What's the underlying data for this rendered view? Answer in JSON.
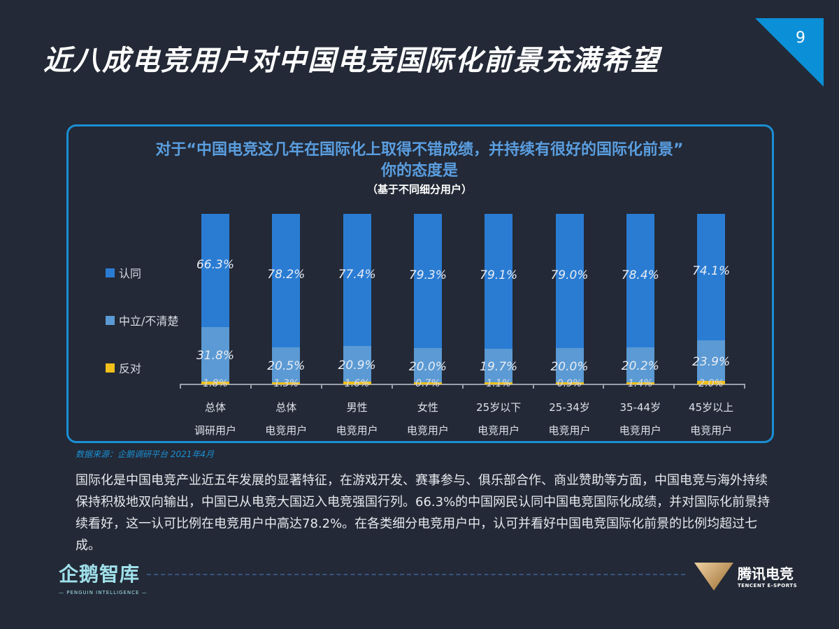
{
  "header": {
    "title": "近八成电竞用户对中国电竞国际化前景充满希望",
    "page_number": "9"
  },
  "chart": {
    "question_line1": "对于“中国电竞这几年在国际化上取得不错成绩，并持续有很好的国际化前景”",
    "question_line2": "你的态度是",
    "subtitle": "（基于不同细分用户）",
    "legend": [
      {
        "label": "认同",
        "color": "#2a7cd3"
      },
      {
        "label": "中立/不清楚",
        "color": "#5b9ad4"
      },
      {
        "label": "反对",
        "color": "#f2c01a"
      }
    ]
  },
  "chart_data": {
    "type": "bar",
    "stacked": true,
    "title": "对于“中国电竞这几年在国际化上取得不错成绩，并持续有很好的国际化前景”你的态度是",
    "subtitle": "（基于不同细分用户）",
    "categories": [
      "总体 调研用户",
      "总体 电竞用户",
      "男性 电竞用户",
      "女性 电竞用户",
      "25岁以下 电竞用户",
      "25-34岁 电竞用户",
      "35-44岁 电竞用户",
      "45岁以上 电竞用户"
    ],
    "category_lines": [
      [
        "总体",
        "调研用户"
      ],
      [
        "总体",
        "电竞用户"
      ],
      [
        "男性",
        "电竞用户"
      ],
      [
        "女性",
        "电竞用户"
      ],
      [
        "25岁以下",
        "电竞用户"
      ],
      [
        "25-34岁",
        "电竞用户"
      ],
      [
        "35-44岁",
        "电竞用户"
      ],
      [
        "45岁以上",
        "电竞用户"
      ]
    ],
    "series": [
      {
        "name": "认同",
        "color": "#2a7cd3",
        "values": [
          66.3,
          78.2,
          77.4,
          79.3,
          79.1,
          79.0,
          78.4,
          74.1
        ]
      },
      {
        "name": "中立/不清楚",
        "color": "#5b9ad4",
        "values": [
          31.8,
          20.5,
          20.9,
          20.0,
          19.7,
          20.0,
          20.2,
          23.9
        ]
      },
      {
        "name": "反对",
        "color": "#f2c01a",
        "values": [
          1.8,
          1.3,
          1.6,
          0.7,
          1.1,
          0.9,
          1.4,
          2.0
        ]
      }
    ],
    "value_labels": {
      "agree": [
        "66.3%",
        "78.2%",
        "77.4%",
        "79.3%",
        "79.1%",
        "79.0%",
        "78.4%",
        "74.1%"
      ],
      "neutral": [
        "31.8%",
        "20.5%",
        "20.9%",
        "20.0%",
        "19.7%",
        "20.0%",
        "20.2%",
        "23.9%"
      ],
      "oppose": [
        "1.8%",
        "1.3%",
        "1.6%",
        "0.7%",
        "1.1%",
        "0.9%",
        "1.4%",
        "2.0%"
      ]
    },
    "ylim": [
      0,
      100
    ],
    "grid": false,
    "legend_position": "left"
  },
  "footer": {
    "source": "数据来源：企鹅调研平台 2021年4月",
    "paragraph": "国际化是中国电竞产业近五年发展的显著特征，在游戏开发、赛事参与、俱乐部合作、商业赞助等方面，中国电竞与海外持续保持积极地双向输出，中国已从电竞大国迈入电竞强国行列。66.3%的中国网民认同中国电竞国际化成绩，并对国际化前景持续看好，这一认可比例在电竞用户中高达78.2%。在各类细分电竞用户中，认可并看好中国电竞国际化前景的比例均超过七成。",
    "logo_left_zh": "企鹅智库",
    "logo_left_en": "— PENGUIN INTELLIGENCE —",
    "logo_right_zh": "腾讯电竞",
    "logo_right_en": "TENCENT E-SPORTS"
  }
}
